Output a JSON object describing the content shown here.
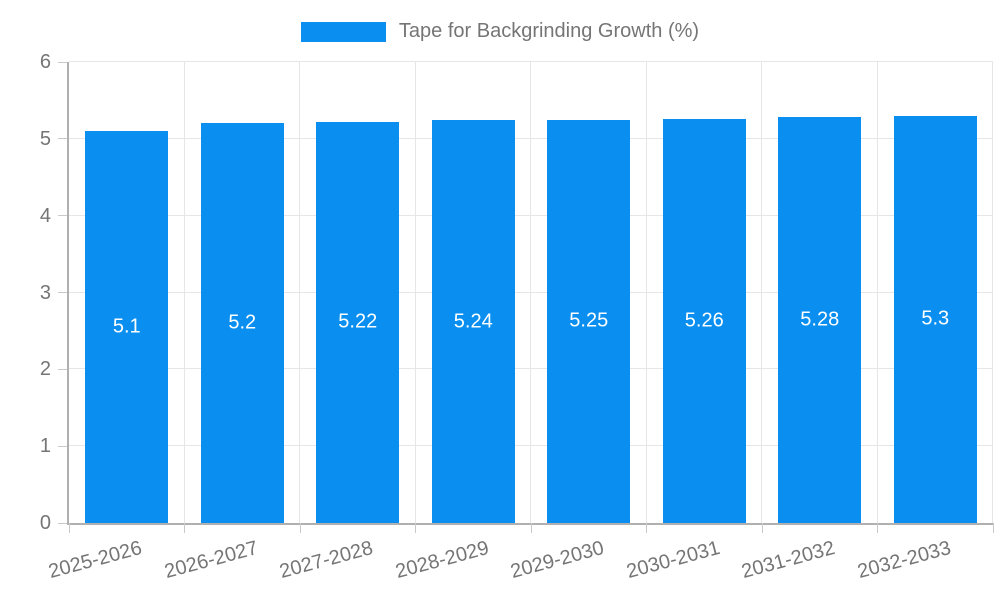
{
  "legend": {
    "position": "top-center",
    "label": "Tape for Backgrinding Growth (%)"
  },
  "chart_data": {
    "type": "bar",
    "title": "Tape for Backgrinding Growth (%)",
    "categories": [
      "2025-2026",
      "2026-2027",
      "2027-2028",
      "2028-2029",
      "2029-2030",
      "2030-2031",
      "2031-2032",
      "2032-2033"
    ],
    "values": [
      5.1,
      5.2,
      5.22,
      5.24,
      5.25,
      5.26,
      5.28,
      5.3
    ],
    "xlabel": "",
    "ylabel": "",
    "ylim": [
      0,
      6
    ],
    "yticks": [
      0,
      1,
      2,
      3,
      4,
      5,
      6
    ],
    "grid": true,
    "legend_position": "top-center",
    "x_tick_rotation_deg": -15,
    "colors": {
      "bar": "#0a8ff0",
      "bar_label": "#ffffff",
      "axis": "#b0b0b0",
      "grid": "#e6e6e6",
      "tick": "#c9c9c9",
      "text": "#757575"
    }
  }
}
